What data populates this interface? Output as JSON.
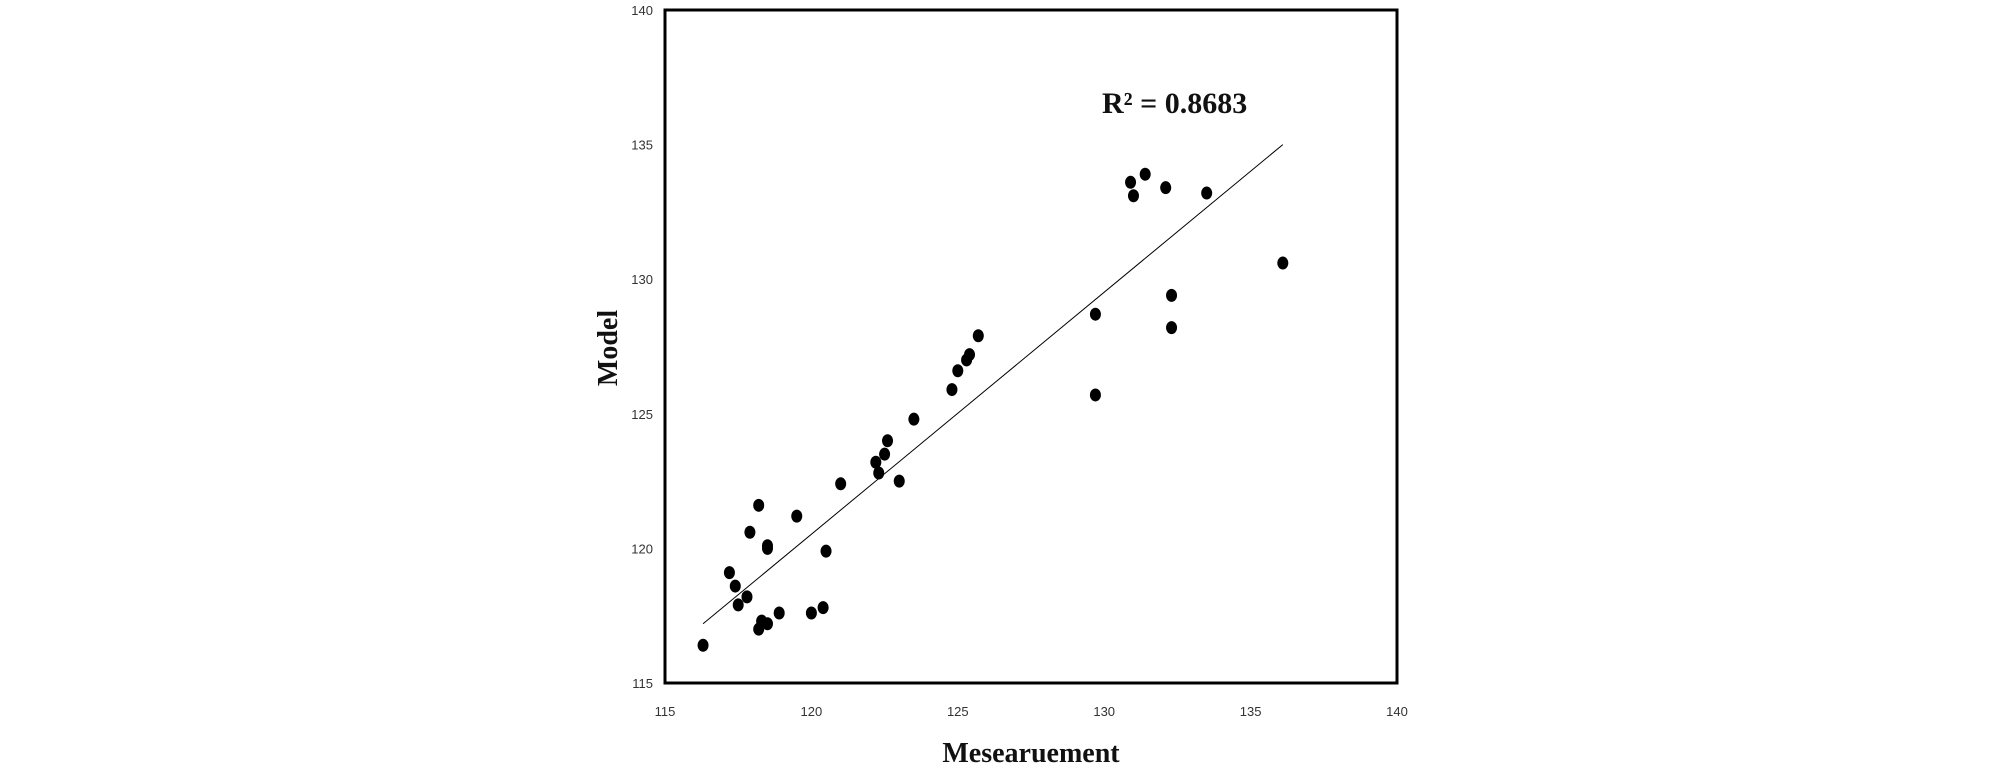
{
  "chart_data": {
    "type": "scatter",
    "title": "",
    "xlabel": "Mesearuement",
    "ylabel": "Model",
    "xlim": [
      115,
      140
    ],
    "ylim": [
      115,
      140
    ],
    "x_ticks": [
      "115",
      "120",
      "125",
      "130",
      "135",
      "140"
    ],
    "y_ticks": [
      "115",
      "120",
      "125",
      "130",
      "135",
      "140"
    ],
    "grid": false,
    "legend": "none",
    "annotation": "R² = 0.8683",
    "series": [
      {
        "points": [
          [
            116.3,
            116.4
          ],
          [
            117.2,
            119.1
          ],
          [
            117.4,
            118.6
          ],
          [
            117.5,
            117.9
          ],
          [
            117.8,
            118.2
          ],
          [
            117.9,
            120.6
          ],
          [
            118.2,
            121.6
          ],
          [
            118.2,
            117.0
          ],
          [
            118.3,
            117.3
          ],
          [
            118.5,
            117.2
          ],
          [
            118.5,
            120.0
          ],
          [
            118.5,
            120.1
          ],
          [
            118.9,
            117.6
          ],
          [
            119.5,
            121.2
          ],
          [
            120.0,
            117.6
          ],
          [
            120.4,
            117.8
          ],
          [
            120.5,
            119.9
          ],
          [
            121.0,
            122.4
          ],
          [
            122.2,
            123.2
          ],
          [
            122.3,
            122.8
          ],
          [
            122.5,
            123.5
          ],
          [
            122.6,
            124.0
          ],
          [
            123.0,
            122.5
          ],
          [
            123.5,
            124.8
          ],
          [
            124.8,
            125.9
          ],
          [
            125.0,
            126.6
          ],
          [
            125.3,
            127.0
          ],
          [
            125.4,
            127.2
          ],
          [
            125.7,
            127.9
          ],
          [
            129.7,
            128.7
          ],
          [
            129.7,
            125.7
          ],
          [
            130.9,
            133.6
          ],
          [
            131.0,
            133.1
          ],
          [
            131.4,
            133.9
          ],
          [
            132.1,
            133.4
          ],
          [
            132.3,
            128.2
          ],
          [
            132.3,
            129.4
          ],
          [
            133.5,
            133.2
          ],
          [
            136.1,
            130.6
          ]
        ]
      }
    ],
    "trendline": {
      "x": [
        116.3,
        136.1
      ],
      "y": [
        117.2,
        135.0
      ]
    },
    "colors": {
      "points": "#000000",
      "line": "#000000",
      "frame": "#000000"
    }
  }
}
